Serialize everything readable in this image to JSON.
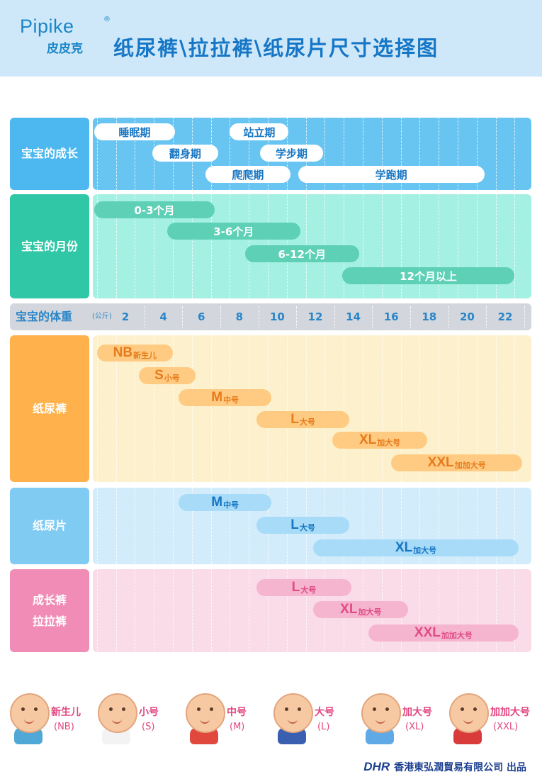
{
  "header": {
    "brand_en": "Pipike",
    "brand_reg": "®",
    "brand_cn": "皮皮克",
    "title": "纸尿裤\\拉拉裤\\纸尿片尺寸选择图"
  },
  "colors": {
    "growth": "#4db8ef",
    "growth_bg": "#68c5f2",
    "month": "#2fc7a6",
    "month_bg": "#a4f0e2",
    "month_bar": "#5dd0b6",
    "diaper": "#ffb24b",
    "diaper_bg": "#fdf1cd",
    "diaper_bar": "#ffcb83",
    "diaper_text": "#e77b1b",
    "pad": "#7fcbf2",
    "pad_bg": "#d2ecfb",
    "pad_bar": "#a7dbf7",
    "pad_text": "#1676c3",
    "pull": "#f08cb5",
    "pull_bg": "#fadbe8",
    "pull_bar": "#f5b5cf",
    "pull_text": "#e04b83"
  },
  "weight_axis": {
    "label": "宝宝的体重",
    "unit": "(公斤)",
    "ticks": [
      2,
      4,
      6,
      8,
      10,
      12,
      14,
      16,
      18,
      20,
      22
    ]
  },
  "rows": [
    {
      "id": "growth",
      "label": "宝宝的成长",
      "bars": [
        {
          "text": "睡眠期",
          "from": 0.2,
          "to": 4.6
        },
        {
          "text": "站立期",
          "from": 7.5,
          "to": 10.6
        },
        {
          "text": "翻身期",
          "from": 3.4,
          "to": 6.9
        },
        {
          "text": "学步期",
          "from": 9.1,
          "to": 12.4
        },
        {
          "text": "爬爬期",
          "from": 6.2,
          "to": 10.7
        },
        {
          "text": "学跑期",
          "from": 11.1,
          "to": 20.9
        }
      ]
    },
    {
      "id": "month",
      "label": "宝宝的月份",
      "bars": [
        {
          "text": "0-3个月",
          "from": 0.1,
          "to": 6.7
        },
        {
          "text": "3-6个月",
          "from": 4.2,
          "to": 11.2
        },
        {
          "text": "6-12个月",
          "from": 8.3,
          "to": 14.3
        },
        {
          "text": "12个月以上",
          "from": 13.4,
          "to": 22.5
        }
      ]
    },
    {
      "id": "diaper",
      "label": "纸尿裤",
      "bars": [
        {
          "size": "NB",
          "desc": "新生儿",
          "from": 0.5,
          "to": 4.5
        },
        {
          "size": "S",
          "desc": "小号",
          "from": 2.7,
          "to": 5.7
        },
        {
          "size": "M",
          "desc": "中号",
          "from": 4.8,
          "to": 9.7
        },
        {
          "size": "L",
          "desc": "大号",
          "from": 8.9,
          "to": 13.8
        },
        {
          "size": "XL",
          "desc": "加大号",
          "from": 12.9,
          "to": 17.9
        },
        {
          "size": "XXL",
          "desc": "加加大号",
          "from": 16.0,
          "to": 22.9
        }
      ]
    },
    {
      "id": "pad",
      "label": "纸尿片",
      "bars": [
        {
          "size": "M",
          "desc": "中号",
          "from": 4.8,
          "to": 9.7
        },
        {
          "size": "L",
          "desc": "大号",
          "from": 8.9,
          "to": 13.8
        },
        {
          "size": "XL",
          "desc": "加大号",
          "from": 11.9,
          "to": 22.7
        }
      ]
    },
    {
      "id": "pull",
      "label": "成长裤\n拉拉裤",
      "bars": [
        {
          "size": "L",
          "desc": "大号",
          "from": 8.9,
          "to": 13.9
        },
        {
          "size": "XL",
          "desc": "加大号",
          "from": 11.9,
          "to": 16.9
        },
        {
          "size": "XXL",
          "desc": "加加大号",
          "from": 14.8,
          "to": 22.7
        }
      ]
    }
  ],
  "legend": [
    {
      "name": "新生儿",
      "code": "(NB)"
    },
    {
      "name": "小号",
      "code": "(S)"
    },
    {
      "name": "中号",
      "code": "(M)"
    },
    {
      "name": "大号",
      "code": "(L)"
    },
    {
      "name": "加大号",
      "code": "(XL)"
    },
    {
      "name": "加加大号",
      "code": "(XXL)"
    }
  ],
  "footer": {
    "logo": "DHR",
    "text": "香港東弘潤貿易有限公司 出品"
  }
}
